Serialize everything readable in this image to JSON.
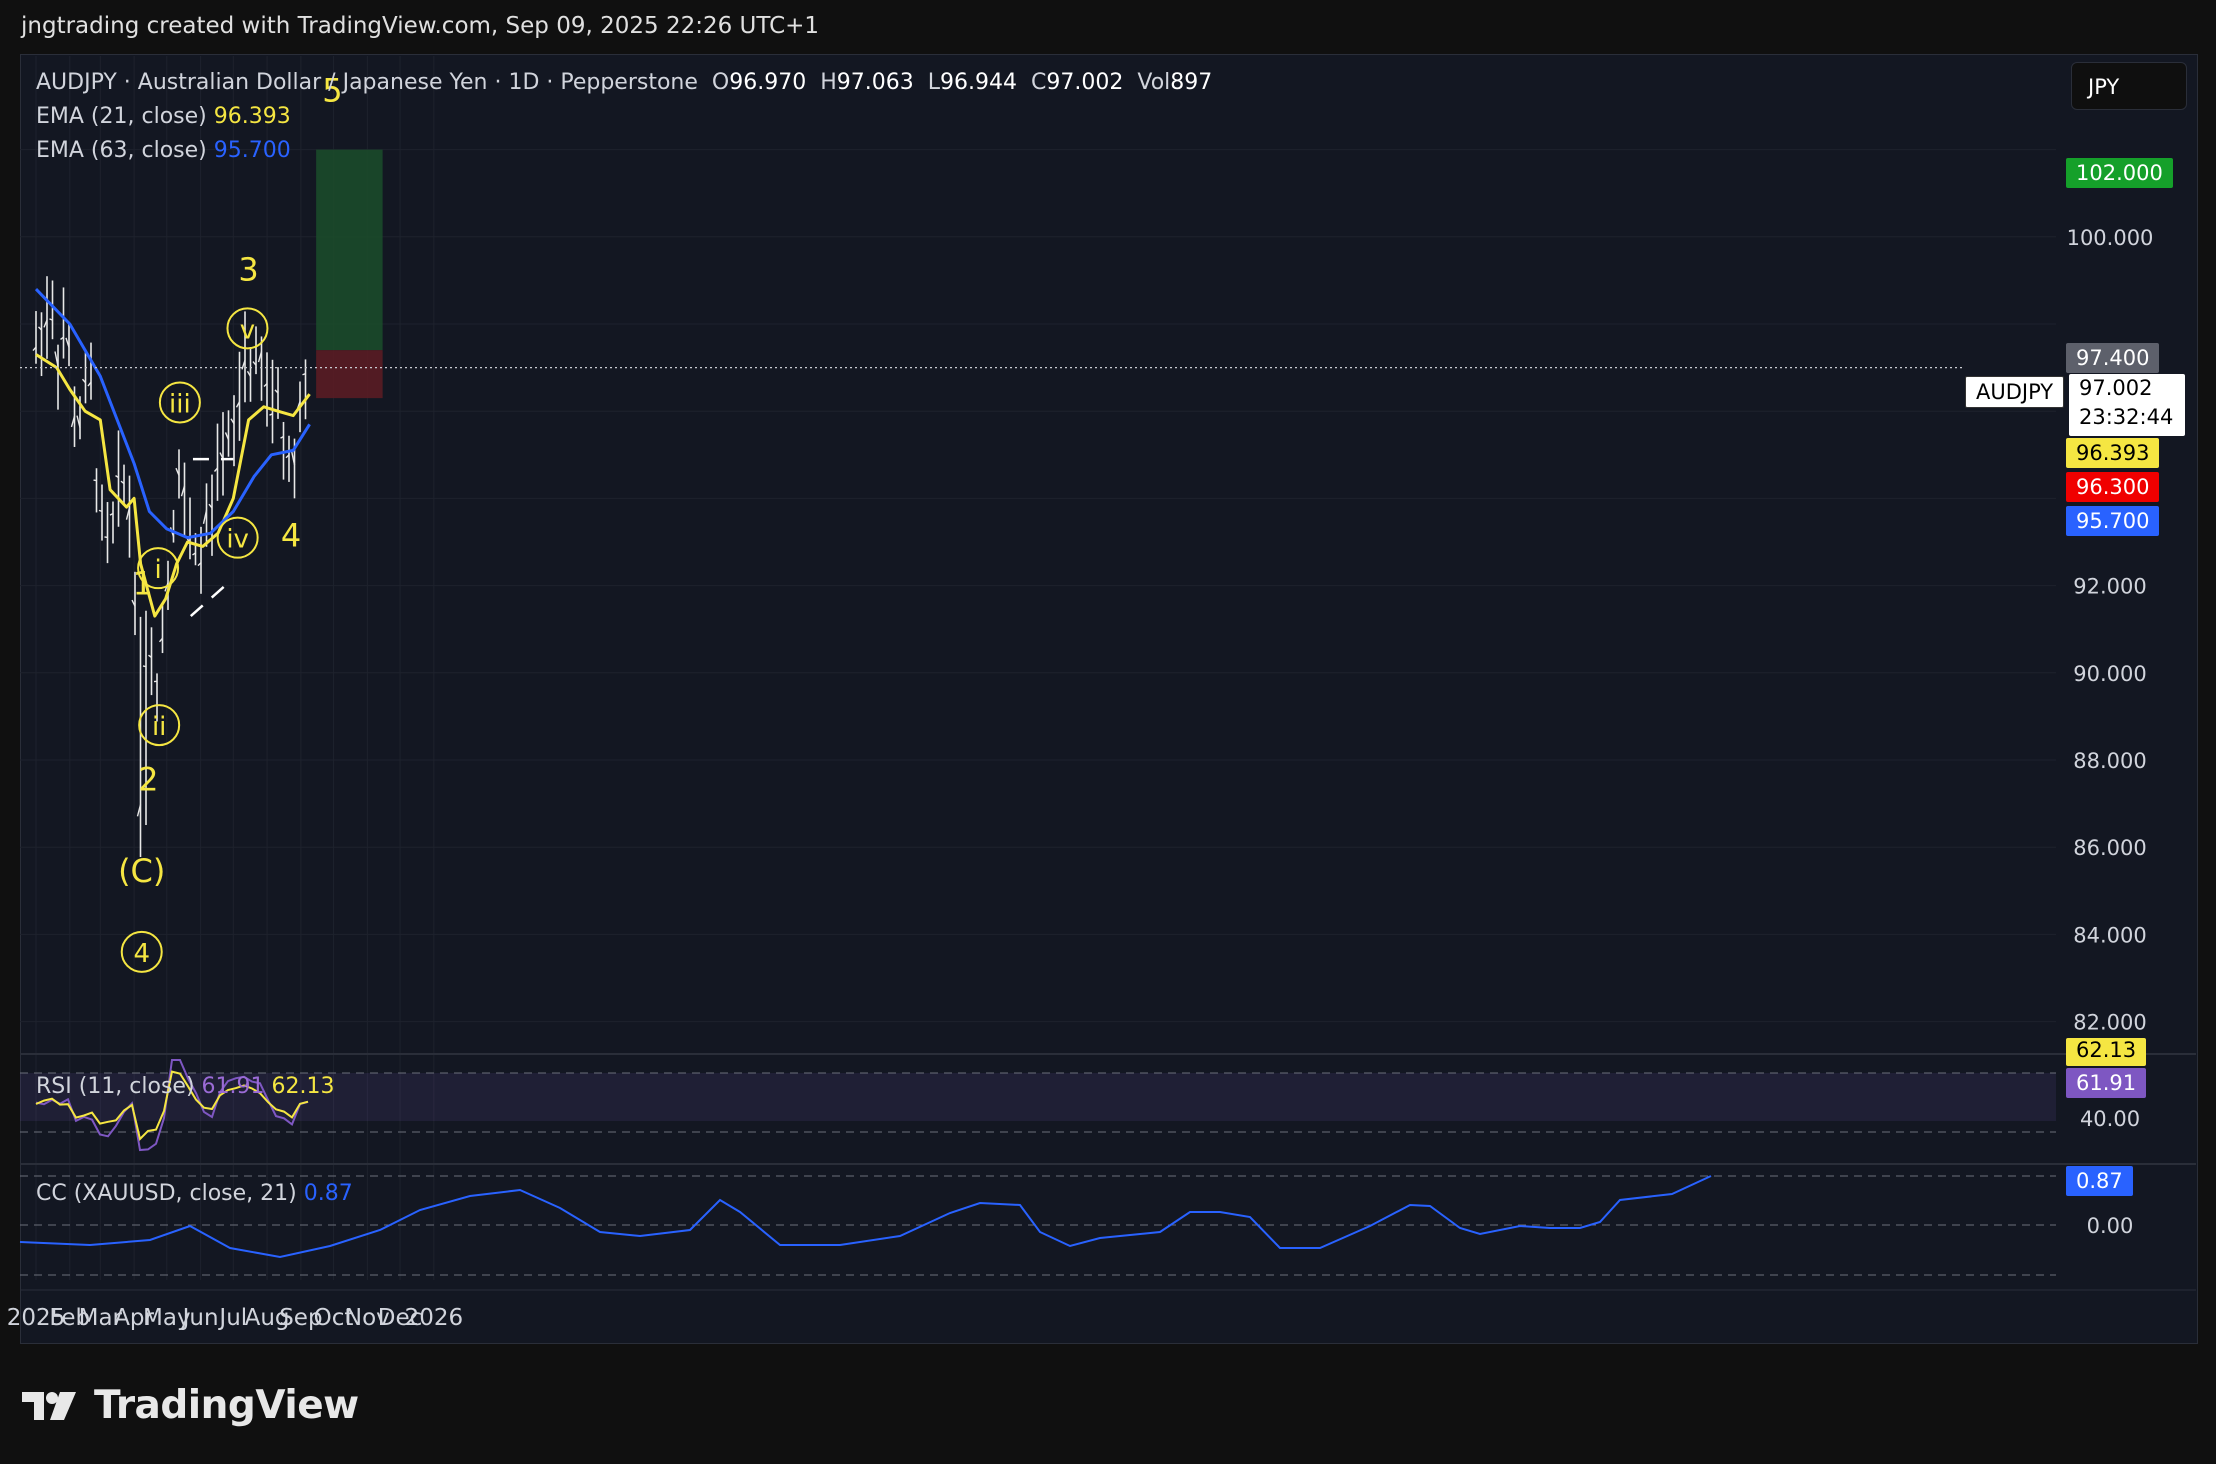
{
  "header": {
    "attribution": "jngtrading created with TradingView.com, Sep 09, 2025 22:26 UTC+1"
  },
  "legend": {
    "symbol": "AUDJPY · Australian Dollar / Japanese Yen · 1D · Pepperstone",
    "o_label": "O",
    "o_value": "96.970",
    "h_label": "H",
    "h_value": "97.063",
    "l_label": "L",
    "l_value": "96.944",
    "c_label": "C",
    "c_value": "97.002",
    "vol_label": "Vol",
    "vol_value": "897",
    "ema21_label": "EMA (21, close)",
    "ema21_value": "96.393",
    "ema63_label": "EMA (63, close)",
    "ema63_value": "95.700"
  },
  "currency_button": "JPY",
  "price_tags": {
    "target": "102.000",
    "stop": "97.400",
    "symbol": "AUDJPY",
    "last": "97.002",
    "countdown": "23:32:44",
    "ema21": "96.393",
    "entry": "96.300",
    "ema63": "95.700",
    "rsi_hidden": "62.13",
    "rsi": "61.91",
    "cc": "0.87"
  },
  "rsi_legend": {
    "label": "RSI (11, close)",
    "v1": "61.91",
    "v2": "62.13"
  },
  "cc_legend": {
    "label": "CC (XAUUSD, close, 21)",
    "v1": "0.87"
  },
  "colors": {
    "ema21": "#f5e642",
    "ema63": "#2962ff",
    "rsi": "#7e57c2",
    "cc": "#2962ff",
    "target_zone": "#1b4d2a",
    "stop_zone": "#5a1c24",
    "annotation": "#f5e642"
  },
  "footer": {
    "brand": "TradingView"
  },
  "chart_data": {
    "type": "candlestick",
    "title": "AUDJPY · Australian Dollar / Japanese Yen · 1D · Pepperstone",
    "x_ticks": [
      "2025",
      "Feb",
      "Mar",
      "Apr",
      "May",
      "Jun",
      "Jul",
      "Aug",
      "Sep",
      "Oct",
      "Nov",
      "Dec",
      "2026"
    ],
    "y_ticks": [
      "82.000",
      "84.000",
      "86.000",
      "88.000",
      "90.000",
      "92.000",
      "100.000"
    ],
    "ylim": [
      81.5,
      103.5
    ],
    "x_start": "2025-01-01",
    "price_path": [
      [
        "2025-01-01",
        97.5
      ],
      [
        "2025-01-10",
        98.2
      ],
      [
        "2025-01-15",
        98.5
      ],
      [
        "2025-01-22",
        97.3
      ],
      [
        "2025-01-29",
        98.0
      ],
      [
        "2025-02-05",
        96.0
      ],
      [
        "2025-02-12",
        95.8
      ],
      [
        "2025-02-19",
        97.0
      ],
      [
        "2025-02-26",
        94.5
      ],
      [
        "2025-03-04",
        93.0
      ],
      [
        "2025-03-10",
        92.9
      ],
      [
        "2025-03-17",
        94.0
      ],
      [
        "2025-03-24",
        94.5
      ],
      [
        "2025-03-31",
        93.0
      ],
      [
        "2025-04-03",
        91.5
      ],
      [
        "2025-04-07",
        86.3
      ],
      [
        "2025-04-10",
        90.0
      ],
      [
        "2025-04-14",
        89.5
      ],
      [
        "2025-04-18",
        90.5
      ],
      [
        "2025-04-22",
        90.0
      ],
      [
        "2025-04-29",
        91.5
      ],
      [
        "2025-05-06",
        93.3
      ],
      [
        "2025-05-13",
        95.0
      ],
      [
        "2025-05-20",
        93.2
      ],
      [
        "2025-05-27",
        92.5
      ],
      [
        "2025-06-03",
        93.0
      ],
      [
        "2025-06-10",
        93.5
      ],
      [
        "2025-06-17",
        94.3
      ],
      [
        "2025-06-24",
        94.8
      ],
      [
        "2025-07-01",
        95.5
      ],
      [
        "2025-07-08",
        96.5
      ],
      [
        "2025-07-14",
        97.5
      ],
      [
        "2025-07-22",
        96.8
      ],
      [
        "2025-07-29",
        97.2
      ],
      [
        "2025-08-04",
        96.0
      ],
      [
        "2025-08-11",
        96.5
      ],
      [
        "2025-08-18",
        95.5
      ],
      [
        "2025-08-22",
        94.5
      ],
      [
        "2025-08-27",
        95.5
      ],
      [
        "2025-09-03",
        96.5
      ],
      [
        "2025-09-09",
        97.0
      ]
    ],
    "series": [
      {
        "name": "EMA (21, close)",
        "last_value": 96.393,
        "path": [
          [
            "2025-01-01",
            97.3
          ],
          [
            "2025-01-20",
            97.0
          ],
          [
            "2025-02-01",
            96.5
          ],
          [
            "2025-02-15",
            96.0
          ],
          [
            "2025-03-01",
            95.8
          ],
          [
            "2025-03-10",
            94.2
          ],
          [
            "2025-03-25",
            93.8
          ],
          [
            "2025-04-01",
            94.0
          ],
          [
            "2025-04-07",
            92.5
          ],
          [
            "2025-04-20",
            91.3
          ],
          [
            "2025-04-30",
            91.7
          ],
          [
            "2025-05-10",
            92.5
          ],
          [
            "2025-05-20",
            93.0
          ],
          [
            "2025-06-03",
            92.9
          ],
          [
            "2025-06-17",
            93.2
          ],
          [
            "2025-07-01",
            94.0
          ],
          [
            "2025-07-15",
            95.8
          ],
          [
            "2025-07-29",
            96.1
          ],
          [
            "2025-08-11",
            96.0
          ],
          [
            "2025-08-25",
            95.9
          ],
          [
            "2025-09-09",
            96.393
          ]
        ]
      },
      {
        "name": "EMA (63, close)",
        "last_value": 95.7,
        "path": [
          [
            "2025-01-01",
            98.8
          ],
          [
            "2025-02-01",
            98.0
          ],
          [
            "2025-03-01",
            96.8
          ],
          [
            "2025-04-01",
            94.8
          ],
          [
            "2025-04-15",
            93.7
          ],
          [
            "2025-05-01",
            93.3
          ],
          [
            "2025-05-20",
            93.1
          ],
          [
            "2025-06-10",
            93.2
          ],
          [
            "2025-07-01",
            93.7
          ],
          [
            "2025-07-20",
            94.5
          ],
          [
            "2025-08-05",
            95.0
          ],
          [
            "2025-08-25",
            95.1
          ],
          [
            "2025-09-09",
            95.7
          ]
        ]
      }
    ],
    "annotations": {
      "labels": [
        {
          "text": "5",
          "date": "2025-09-30",
          "price": 103.1
        },
        {
          "text": "3",
          "date": "2025-07-15",
          "price": 99.0
        },
        {
          "text": "4",
          "date": "2025-08-23",
          "price": 92.9
        },
        {
          "text": "1",
          "date": "2025-04-09",
          "price": 91.8
        },
        {
          "text": "2",
          "date": "2025-04-14",
          "price": 87.3
        },
        {
          "text": "(C)",
          "date": "2025-04-08",
          "price": 85.2
        }
      ],
      "circled": [
        {
          "text": "4",
          "date": "2025-04-08",
          "price": 83.6
        },
        {
          "text": "i",
          "date": "2025-04-23",
          "price": 92.4
        },
        {
          "text": "ii",
          "date": "2025-04-24",
          "price": 88.8
        },
        {
          "text": "iii",
          "date": "2025-05-13",
          "price": 96.2
        },
        {
          "text": "iv",
          "date": "2025-07-05",
          "price": 93.1
        },
        {
          "text": "v",
          "date": "2025-07-14",
          "price": 97.9
        }
      ],
      "position": {
        "entry": 96.3,
        "stop": 97.4,
        "target": 102.0,
        "start_date": "2025-09-15",
        "end_date": "2025-11-15"
      }
    },
    "rsi": {
      "label": "RSI (11, close)",
      "ticks": [
        "40.00"
      ],
      "last": 61.91,
      "signal_last": 62.13
    },
    "cc": {
      "label": "CC (XAUUSD, close, 21)",
      "ticks": [
        "0.00"
      ],
      "last": 0.87
    }
  }
}
